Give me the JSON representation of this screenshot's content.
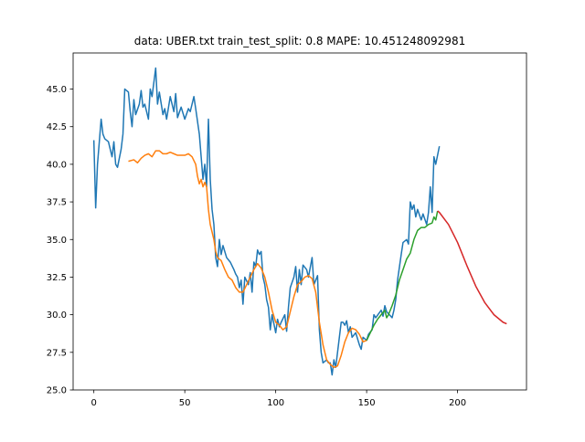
{
  "chart_data": {
    "type": "line",
    "title": "data: UBER.txt train_test_split: 0.8  MAPE: 10.451248092981",
    "xlim": [
      -11.4,
      237.9
    ],
    "ylim": [
      25.0,
      47.4
    ],
    "xticks": [
      0,
      50,
      100,
      150,
      200
    ],
    "yticks": [
      {
        "value": 25.0,
        "label": "25.0"
      },
      {
        "value": 27.5,
        "label": "27.5"
      },
      {
        "value": 30.0,
        "label": "30.0"
      },
      {
        "value": 32.5,
        "label": "32.5"
      },
      {
        "value": 35.0,
        "label": "35.0"
      },
      {
        "value": 37.5,
        "label": "37.5"
      },
      {
        "value": 40.0,
        "label": "40.0"
      },
      {
        "value": 42.5,
        "label": "42.5"
      },
      {
        "value": 45.0,
        "label": "45.0"
      }
    ],
    "grid": false,
    "series": [
      {
        "color": "#1f77b4",
        "x": [
          0,
          1,
          2,
          3,
          4,
          5,
          6,
          8,
          10,
          11,
          12,
          13,
          15,
          16,
          17,
          19,
          20,
          21,
          22,
          23,
          25,
          26,
          27,
          28,
          30,
          31,
          32,
          34,
          35,
          36,
          38,
          39,
          40,
          42,
          44,
          45,
          46,
          48,
          50,
          52,
          53,
          55,
          56,
          58,
          59,
          60,
          61,
          62,
          63,
          64,
          65,
          66,
          67,
          68,
          69,
          70,
          71,
          73,
          75,
          77,
          78,
          79,
          80,
          81,
          82,
          83,
          85,
          86,
          87,
          88,
          89,
          90,
          91,
          92,
          93,
          94,
          95,
          96,
          97,
          98,
          100,
          101,
          102,
          103,
          105,
          106,
          107,
          108,
          110,
          111,
          112,
          113,
          114,
          115,
          117,
          118,
          120,
          121,
          123,
          124,
          125,
          126,
          128,
          129,
          130,
          131,
          132,
          133,
          134,
          136,
          137,
          138,
          139,
          140,
          141,
          142,
          144,
          146,
          147,
          148,
          150,
          151,
          153,
          154,
          155,
          158,
          159,
          160,
          161,
          164,
          165,
          166,
          167,
          169,
          170,
          172,
          173,
          174,
          175,
          176,
          177,
          178,
          180,
          181,
          183,
          184,
          185,
          186,
          187,
          188,
          190
        ],
        "values": [
          41.6,
          37.1,
          40,
          41.5,
          43,
          42,
          41.7,
          41.5,
          40.5,
          41.5,
          40,
          39.8,
          41,
          42,
          45,
          44.8,
          43.5,
          42.5,
          44.3,
          43.3,
          44,
          44.9,
          43.8,
          44,
          43,
          45,
          44.5,
          46.4,
          44,
          44.8,
          43.3,
          43.7,
          43,
          44.5,
          43.5,
          44.7,
          43.1,
          43.8,
          43,
          43.7,
          43.5,
          44.5,
          43.7,
          42,
          40.5,
          39,
          40,
          38.5,
          43,
          39,
          37,
          36,
          33.8,
          33.2,
          35,
          34,
          34.6,
          33.8,
          33.5,
          33,
          32.7,
          32.5,
          31.8,
          32.3,
          30.7,
          32.5,
          32,
          32.8,
          31.5,
          33.5,
          33.2,
          34.3,
          34,
          34.2,
          32.5,
          32,
          31,
          30.5,
          29,
          30,
          28.8,
          29.7,
          29.2,
          29.5,
          30,
          28.9,
          30.5,
          31.8,
          32.5,
          33.2,
          31.5,
          33,
          32,
          33.3,
          33,
          32.5,
          33.8,
          32,
          32.6,
          29,
          27.5,
          26.8,
          27,
          26.8,
          26.8,
          26,
          27,
          26.5,
          27.5,
          29.5,
          29.5,
          29.3,
          29.6,
          28.8,
          29.2,
          28.5,
          28.8,
          28,
          27.7,
          28.5,
          28.3,
          28.7,
          29,
          30,
          29.8,
          30.3,
          29.9,
          30.6,
          30.2,
          29.8,
          30.3,
          31,
          32.3,
          34,
          34.8,
          35,
          34.7,
          37.5,
          37,
          37.3,
          36.5,
          37,
          36.3,
          36.7,
          36,
          36.8,
          38.5,
          36.8,
          40.5,
          40,
          41.2
        ]
      },
      {
        "color": "#ff7f0e",
        "x": [
          19,
          22,
          24,
          26,
          28,
          30,
          32,
          34,
          36,
          38,
          40,
          42,
          44,
          46,
          48,
          50,
          52,
          54,
          56,
          57,
          58,
          59,
          60,
          61,
          62,
          63,
          64,
          65,
          66,
          67,
          68,
          70,
          72,
          74,
          76,
          78,
          80,
          82,
          84,
          86,
          88,
          90,
          92,
          94,
          96,
          98,
          100,
          102,
          104,
          106,
          108,
          110,
          112,
          114,
          116,
          118,
          120,
          122,
          124,
          126,
          128,
          130,
          132,
          134,
          136,
          138,
          140,
          142,
          144,
          146,
          148,
          150
        ],
        "values": [
          40.2,
          40.3,
          40.1,
          40.4,
          40.6,
          40.7,
          40.5,
          40.9,
          40.9,
          40.7,
          40.7,
          40.8,
          40.7,
          40.6,
          40.6,
          40.6,
          40.7,
          40.5,
          40.0,
          39.2,
          38.7,
          39.0,
          38.5,
          38.8,
          38.5,
          37.0,
          36.0,
          35.5,
          35.0,
          34.2,
          33.8,
          33.6,
          33.0,
          32.5,
          32.3,
          31.8,
          31.5,
          31.5,
          32.0,
          32.5,
          33.0,
          33.4,
          33.1,
          32.5,
          31.5,
          30.3,
          29.5,
          29.3,
          29.0,
          29.2,
          30.2,
          31.2,
          32.0,
          32.2,
          32.5,
          32.6,
          32.4,
          31.5,
          29.5,
          28.0,
          27.0,
          26.7,
          26.5,
          26.6,
          27.3,
          28.2,
          28.8,
          29.1,
          29.0,
          28.7,
          28.2,
          28.3
        ]
      },
      {
        "color": "#2ca02c",
        "x": [
          150,
          152,
          154,
          156,
          158,
          160,
          161,
          162,
          164,
          166,
          168,
          170,
          172,
          174,
          176,
          178,
          180,
          182,
          184,
          186,
          187,
          188,
          189
        ],
        "values": [
          28.3,
          28.8,
          29.3,
          29.7,
          30.0,
          30.3,
          29.8,
          30.0,
          30.6,
          31.3,
          32.3,
          33.0,
          33.7,
          34.1,
          35.0,
          35.6,
          35.8,
          35.8,
          36.0,
          36.1,
          36.5,
          36.3,
          36.9
        ]
      },
      {
        "color": "#d62728",
        "x": [
          189,
          190,
          195,
          200,
          205,
          210,
          215,
          220,
          225,
          227
        ],
        "values": [
          36.9,
          36.8,
          36.0,
          34.8,
          33.3,
          31.9,
          30.8,
          30.0,
          29.5,
          29.4
        ]
      }
    ]
  }
}
